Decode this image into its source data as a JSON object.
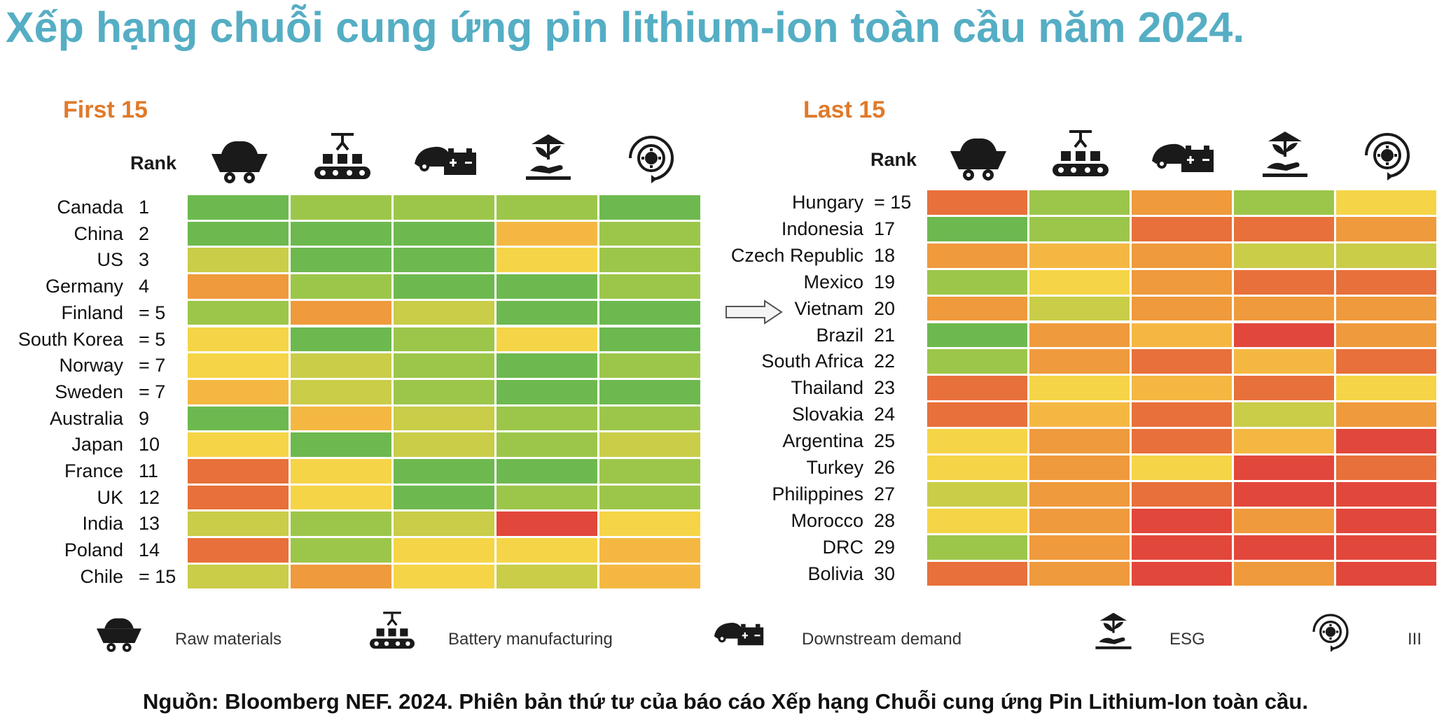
{
  "title": "Xếp hạng chuỗi cung ứng pin lithium-ion toàn cầu năm 2024.",
  "source": "Nguồn: Bloomberg NEF. 2024. Phiên bản thứ tư của báo cáo Xếp hạng Chuỗi cung ứng Pin Lithium-Ion toàn cầu.",
  "colors": {
    "title": "#55aec4",
    "heading": "#e07a2a",
    "scale": [
      "#e2473b",
      "#e8703a",
      "#ef9a3c",
      "#f4b842",
      "#f5d547",
      "#c9cd48",
      "#9cc64a",
      "#6db94f"
    ]
  },
  "legend": [
    {
      "icon": "mine-cart-icon",
      "label": "Raw materials"
    },
    {
      "icon": "conveyor-icon",
      "label": "Battery manufacturing"
    },
    {
      "icon": "car-battery-icon",
      "label": "Downstream demand"
    },
    {
      "icon": "plant-hand-icon",
      "label": "ESG"
    },
    {
      "icon": "recycle-gear-icon",
      "label": "III"
    }
  ],
  "chart_data": [
    {
      "type": "heatmap",
      "title": "First 15",
      "rank_header": "Rank",
      "columns": [
        "Raw materials",
        "Battery manufacturing",
        "Downstream demand",
        "ESG",
        "III"
      ],
      "scale_note": "cell value 0 (red, weakest) to 7 (green, strongest)",
      "rows": [
        {
          "country": "Canada",
          "rank": "1",
          "values": [
            7,
            6,
            6,
            6,
            7
          ]
        },
        {
          "country": "China",
          "rank": "2",
          "values": [
            7,
            7,
            7,
            3,
            6
          ]
        },
        {
          "country": "US",
          "rank": "3",
          "values": [
            5,
            7,
            7,
            4,
            6
          ]
        },
        {
          "country": "Germany",
          "rank": "4",
          "values": [
            2,
            6,
            7,
            7,
            6
          ]
        },
        {
          "country": "Finland",
          "rank": "= 5",
          "values": [
            6,
            2,
            5,
            7,
            7
          ]
        },
        {
          "country": "South Korea",
          "rank": "= 5",
          "values": [
            4,
            7,
            6,
            4,
            7
          ]
        },
        {
          "country": "Norway",
          "rank": "= 7",
          "values": [
            4,
            5,
            6,
            7,
            6
          ]
        },
        {
          "country": "Sweden",
          "rank": "= 7",
          "values": [
            3,
            5,
            6,
            7,
            7
          ]
        },
        {
          "country": "Australia",
          "rank": "9",
          "values": [
            7,
            3,
            5,
            6,
            6
          ]
        },
        {
          "country": "Japan",
          "rank": "10",
          "values": [
            4,
            7,
            5,
            6,
            5
          ]
        },
        {
          "country": "France",
          "rank": "11",
          "values": [
            1,
            4,
            7,
            7,
            6
          ]
        },
        {
          "country": "UK",
          "rank": "12",
          "values": [
            1,
            4,
            7,
            6,
            6
          ]
        },
        {
          "country": "India",
          "rank": "13",
          "values": [
            5,
            6,
            5,
            0,
            4
          ]
        },
        {
          "country": "Poland",
          "rank": "14",
          "values": [
            1,
            6,
            4,
            4,
            3
          ]
        },
        {
          "country": "Chile",
          "rank": "= 15",
          "values": [
            5,
            2,
            4,
            5,
            3
          ]
        }
      ]
    },
    {
      "type": "heatmap",
      "title": "Last 15",
      "rank_header": "Rank",
      "columns": [
        "Raw materials",
        "Battery manufacturing",
        "Downstream demand",
        "ESG",
        "III"
      ],
      "scale_note": "cell value 0 (red, weakest) to 7 (green, strongest)",
      "highlight": "Vietnam",
      "rows": [
        {
          "country": "Hungary",
          "rank": "= 15",
          "values": [
            1,
            6,
            2,
            6,
            4
          ]
        },
        {
          "country": "Indonesia",
          "rank": "17",
          "values": [
            7,
            6,
            1,
            1,
            2
          ]
        },
        {
          "country": "Czech Republic",
          "rank": "18",
          "values": [
            2,
            3,
            2,
            5,
            5
          ]
        },
        {
          "country": "Mexico",
          "rank": "19",
          "values": [
            6,
            4,
            2,
            1,
            1
          ]
        },
        {
          "country": "Vietnam",
          "rank": "20",
          "values": [
            2,
            5,
            2,
            2,
            2
          ]
        },
        {
          "country": "Brazil",
          "rank": "21",
          "values": [
            7,
            2,
            3,
            0,
            2
          ]
        },
        {
          "country": "South Africa",
          "rank": "22",
          "values": [
            6,
            2,
            1,
            3,
            1
          ]
        },
        {
          "country": "Thailand",
          "rank": "23",
          "values": [
            1,
            4,
            3,
            1,
            4
          ]
        },
        {
          "country": "Slovakia",
          "rank": "24",
          "values": [
            1,
            3,
            1,
            5,
            2
          ]
        },
        {
          "country": "Argentina",
          "rank": "25",
          "values": [
            4,
            2,
            1,
            3,
            0
          ]
        },
        {
          "country": "Turkey",
          "rank": "26",
          "values": [
            4,
            2,
            4,
            0,
            1
          ]
        },
        {
          "country": "Philippines",
          "rank": "27",
          "values": [
            5,
            2,
            1,
            0,
            0
          ]
        },
        {
          "country": "Morocco",
          "rank": "28",
          "values": [
            4,
            2,
            0,
            2,
            0
          ]
        },
        {
          "country": "DRC",
          "rank": "29",
          "values": [
            6,
            2,
            0,
            0,
            0
          ]
        },
        {
          "country": "Bolivia",
          "rank": "30",
          "values": [
            1,
            2,
            0,
            2,
            0
          ]
        }
      ]
    }
  ]
}
